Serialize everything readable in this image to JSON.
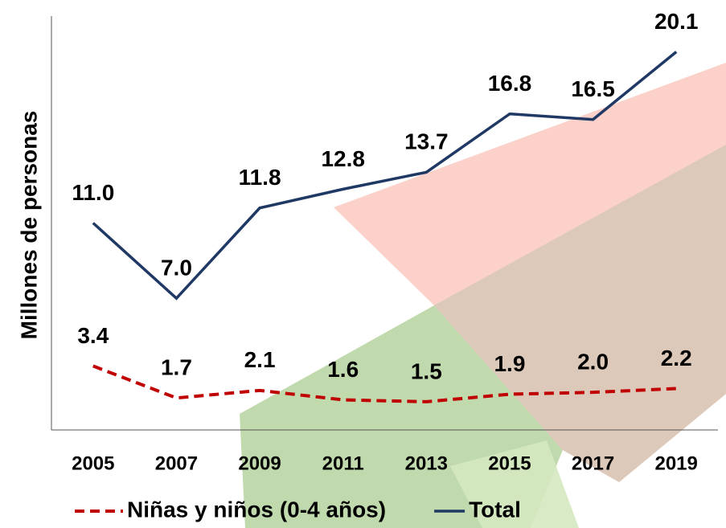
{
  "chart_data": {
    "type": "line",
    "y_label": "Millones de personas",
    "categories": [
      "2005",
      "2007",
      "2009",
      "2011",
      "2013",
      "2015",
      "2017",
      "2019"
    ],
    "series": [
      {
        "name": "Niñas y niños (0-4 años)",
        "color": "#c00000",
        "dashed": true,
        "values": [
          3.4,
          1.7,
          2.1,
          1.6,
          1.5,
          1.9,
          2.0,
          2.2
        ],
        "value_labels": [
          "3.4",
          "1.7",
          "2.1",
          "1.6",
          "1.5",
          "1.9",
          "2.0",
          "2.2"
        ]
      },
      {
        "name": "Total",
        "color": "#1f3864",
        "dashed": false,
        "values": [
          11.0,
          7.0,
          11.8,
          12.8,
          13.7,
          16.8,
          16.5,
          20.1
        ],
        "value_labels": [
          "11.0",
          "7.0",
          "11.8",
          "12.8",
          "13.7",
          "16.8",
          "16.5",
          "20.1"
        ]
      }
    ],
    "ylim": [
      0,
      22
    ]
  }
}
